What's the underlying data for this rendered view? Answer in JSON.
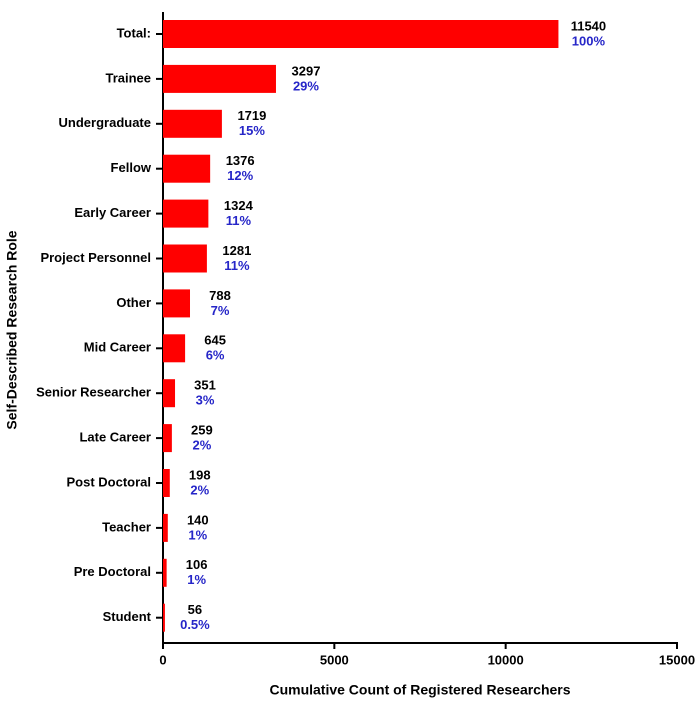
{
  "chart_data": {
    "type": "barh",
    "xlabel": "Cumulative Count of Registered Researchers",
    "ylabel": "Self-Described Research Role",
    "categories": [
      "Total:",
      "Trainee",
      "Undergraduate",
      "Fellow",
      "Early Career",
      "Project Personnel",
      "Other",
      "Mid Career",
      "Senior Researcher",
      "Late Career",
      "Post Doctoral",
      "Teacher",
      "Pre Doctoral",
      "Student"
    ],
    "values": [
      11540,
      3297,
      1719,
      1376,
      1324,
      1281,
      788,
      645,
      351,
      259,
      198,
      140,
      106,
      56
    ],
    "percent_labels": [
      "100%",
      "29%",
      "15%",
      "12%",
      "11%",
      "11%",
      "7%",
      "6%",
      "3%",
      "2%",
      "2%",
      "1%",
      "1%",
      "0.5%"
    ],
    "color": "#ff0000",
    "percent_color": "#2626c8",
    "xlim": [
      0,
      15000
    ],
    "xticks": [
      0,
      5000,
      10000,
      15000
    ],
    "grid": false
  }
}
